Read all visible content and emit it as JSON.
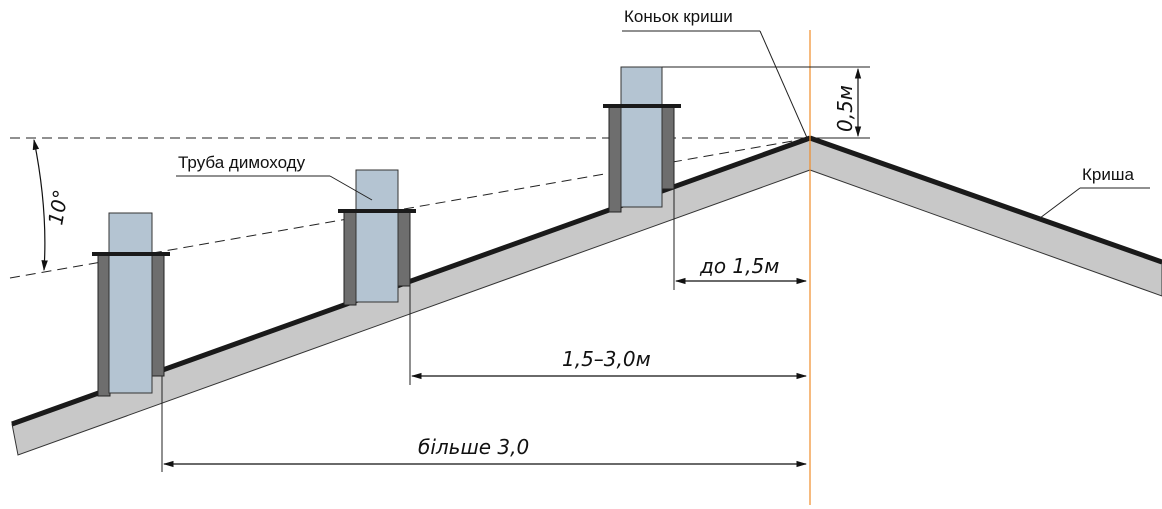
{
  "labels": {
    "ridge": "Коньок криши",
    "chimney": "Труба димоходу",
    "roof": "Криша"
  },
  "dimensions": {
    "height_above_ridge": "0,5м",
    "angle": "10°",
    "near": "до 1,5м",
    "mid": "1,5–3,0м",
    "far": "більше 3,0"
  },
  "colors": {
    "roof_fill": "#c8c8c8",
    "roof_top": "#1a1a1a",
    "pipe_fill": "#b4c4d2",
    "pipe_body": "#6e6e6e",
    "axis": "#f08c28"
  }
}
